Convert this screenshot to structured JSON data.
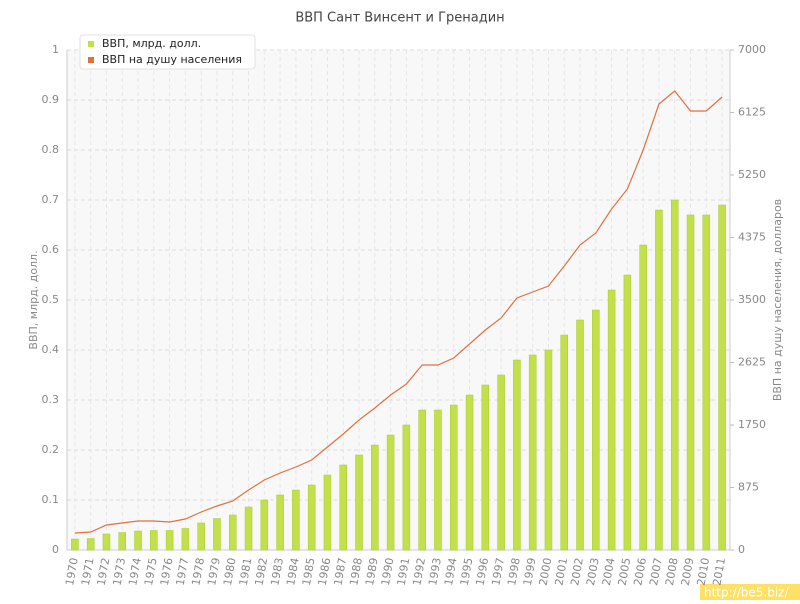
{
  "chart_data": {
    "type": "bar_line",
    "title": "ВВП Сант Винсент и Гренадин",
    "y_label": "ВВП, млрд. долл.",
    "y2_label": "ВВП на душу населения, долларов",
    "categories": [
      "1970",
      "1971",
      "1972",
      "1973",
      "1974",
      "1975",
      "1976",
      "1977",
      "1978",
      "1979",
      "1980",
      "1981",
      "1982",
      "1983",
      "1984",
      "1985",
      "1986",
      "1987",
      "1988",
      "1989",
      "1990",
      "1991",
      "1992",
      "1993",
      "1994",
      "1995",
      "1996",
      "1997",
      "1998",
      "1999",
      "2000",
      "2001",
      "2002",
      "2003",
      "2004",
      "2005",
      "2006",
      "2007",
      "2008",
      "2009",
      "2010",
      "2011"
    ],
    "series": [
      {
        "name": "ВВП, млрд. долл.",
        "color": "#c2e04a",
        "type": "bar",
        "values": [
          0.022,
          0.023,
          0.032,
          0.035,
          0.038,
          0.039,
          0.039,
          0.043,
          0.054,
          0.063,
          0.07,
          0.086,
          0.1,
          0.11,
          0.12,
          0.13,
          0.15,
          0.17,
          0.19,
          0.21,
          0.23,
          0.25,
          0.28,
          0.28,
          0.29,
          0.31,
          0.33,
          0.35,
          0.38,
          0.39,
          0.4,
          0.43,
          0.46,
          0.48,
          0.52,
          0.55,
          0.61,
          0.68,
          0.7,
          0.67,
          0.67,
          0.69
        ]
      },
      {
        "name": "ВВП на душу населения",
        "color": "#e0703f",
        "type": "line",
        "axis": "y2",
        "values": [
          238,
          252,
          350,
          378,
          406,
          406,
          392,
          434,
          532,
          616,
          686,
          840,
          980,
          1078,
          1162,
          1260,
          1442,
          1624,
          1820,
          1988,
          2170,
          2324,
          2590,
          2590,
          2688,
          2884,
          3080,
          3248,
          3528,
          3612,
          3696,
          3976,
          4270,
          4438,
          4774,
          5054,
          5600,
          6244,
          6426,
          6146,
          6146,
          6342
        ]
      }
    ],
    "ylim": [
      0,
      1
    ],
    "yticks": [
      0,
      0.1,
      0.2,
      0.3,
      0.4,
      0.5,
      0.6,
      0.7,
      0.8,
      0.9,
      1
    ],
    "y2lim": [
      0,
      7000
    ],
    "y2ticks": [
      0,
      875,
      1750,
      2625,
      3500,
      4375,
      5250,
      6125,
      7000
    ],
    "grid": true,
    "legend": "top-left",
    "watermark": "http://be5.biz/"
  }
}
